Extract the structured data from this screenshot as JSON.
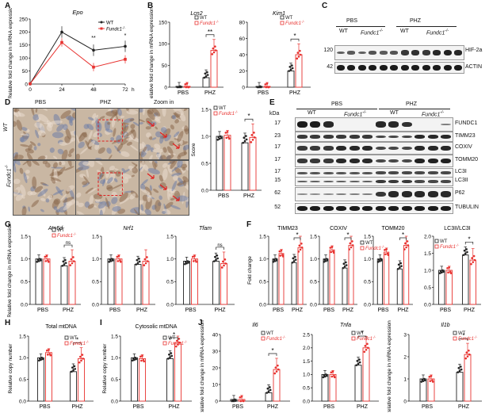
{
  "panels": {
    "A": {
      "label": "A"
    },
    "B": {
      "label": "B"
    },
    "C": {
      "label": "C"
    },
    "D": {
      "label": "D"
    },
    "E": {
      "label": "E"
    },
    "F": {
      "label": "F"
    },
    "G": {
      "label": "G"
    },
    "H": {
      "label": "H"
    },
    "I": {
      "label": "I"
    },
    "J": {
      "label": "J"
    }
  },
  "legend": {
    "wt": "WT",
    "ko": "Fundc1",
    "ko_sup": "-/-"
  },
  "colors": {
    "wt": "#222222",
    "ko": "#e8322f"
  },
  "common": {
    "pbs": "PBS",
    "phz": "PHZ",
    "ylab_mrna": "Relative fold change in mRNA expression",
    "ns": "ns",
    "sig1": "*",
    "sig2": "**"
  },
  "panelA": {
    "title": "Epo",
    "xunit": "h",
    "ylabel": "Relative fold change in mRNA expression"
  },
  "panelC": {
    "groups": [
      "PBS",
      "PHZ"
    ],
    "sub": [
      "WT",
      "Fundc1",
      "WT",
      "Fundc1"
    ],
    "sup": "-/-",
    "blots": [
      "HIF-2a",
      "ACTIN"
    ],
    "kda": [
      "120",
      "42"
    ]
  },
  "panelD": {
    "cols": [
      "PBS",
      "PHZ",
      "Zoom in"
    ],
    "rows": [
      "WT",
      "Fundc1"
    ],
    "row_sup": "-/-",
    "ylabel": "Score"
  },
  "panelE": {
    "kda_title": "kDa",
    "groups": [
      "PBS",
      "PHZ"
    ],
    "sub": [
      "WT",
      "Fundc1",
      "WT",
      "Fundc1"
    ],
    "sup": "-/-",
    "blots": [
      "FUNDC1",
      "TIMM23",
      "COXIV",
      "TOMM20",
      "LC3I",
      "LC3II",
      "P62",
      "TUBULIN"
    ],
    "kda": [
      "17",
      "23",
      "17",
      "17",
      "17",
      "15",
      "62",
      "52"
    ]
  },
  "panelF": {
    "ylabel": "Fold change"
  },
  "panelG": {
    "ylabel": "Relative fold change in mRNA expression"
  },
  "panelH": {
    "title": "Total mtDNA",
    "ylabel": "Relative copy number"
  },
  "panelI": {
    "title": "Cytosolic mtDNA",
    "ylabel": "Relative copy number"
  },
  "panelJ": {
    "ylabel": "Relative fold change in mRNA expression"
  },
  "chart_data": [
    {
      "id": "A",
      "type": "line",
      "title": "Epo",
      "x": [
        0,
        24,
        48,
        72
      ],
      "xlabel": "h",
      "ylabel": "Relative fold change in mRNA expression",
      "ylim": [
        0,
        250
      ],
      "yticks": [
        0,
        50,
        100,
        150,
        200,
        250
      ],
      "series": [
        {
          "name": "WT",
          "values": [
            1,
            200,
            130,
            145
          ]
        },
        {
          "name": "Fundc1-/-",
          "values": [
            1,
            160,
            65,
            95
          ]
        }
      ],
      "annotations": [
        "**",
        "*"
      ]
    },
    {
      "id": "B1",
      "type": "bar",
      "title": "Lcn2",
      "categories": [
        "PBS",
        "PHZ"
      ],
      "ylim": [
        0,
        150
      ],
      "yticks": [
        0,
        50,
        100,
        150
      ],
      "ylabel": "Relative fold change in mRNA expression",
      "series": [
        {
          "name": "WT",
          "values": [
            2,
            22
          ]
        },
        {
          "name": "Fundc1-/-",
          "values": [
            2,
            85
          ]
        }
      ],
      "annotations": [
        "**"
      ]
    },
    {
      "id": "B2",
      "type": "bar",
      "title": "Kim1",
      "categories": [
        "PBS",
        "PHZ"
      ],
      "ylim": [
        0,
        80
      ],
      "yticks": [
        0,
        20,
        40,
        60,
        80
      ],
      "series": [
        {
          "name": "WT",
          "values": [
            1,
            20
          ]
        },
        {
          "name": "Fundc1-/-",
          "values": [
            1,
            40
          ]
        }
      ],
      "annotations": [
        "*"
      ]
    },
    {
      "id": "D",
      "type": "bar",
      "categories": [
        "PBS",
        "PHZ"
      ],
      "ylabel": "Score",
      "ylim": [
        0,
        1.5
      ],
      "yticks": [
        0.0,
        0.5,
        1.0,
        1.5
      ],
      "series": [
        {
          "name": "WT",
          "values": [
            1.0,
            0.88
          ]
        },
        {
          "name": "Fundc1-/-",
          "values": [
            1.02,
            0.98
          ]
        }
      ],
      "annotations": [
        "*"
      ]
    },
    {
      "id": "F1",
      "type": "bar",
      "title": "TIMM23",
      "categories": [
        "PBS",
        "PHZ"
      ],
      "ylabel": "Fold change",
      "ylim": [
        0,
        1.5
      ],
      "yticks": [
        0.0,
        0.5,
        1.0,
        1.5
      ],
      "series": [
        {
          "name": "WT",
          "values": [
            1.0,
            0.92
          ]
        },
        {
          "name": "Fundc1-/-",
          "values": [
            1.12,
            1.25
          ]
        }
      ],
      "annotations": [
        "*"
      ]
    },
    {
      "id": "F2",
      "type": "bar",
      "title": "COXIV",
      "categories": [
        "PBS",
        "PHZ"
      ],
      "ylim": [
        0,
        1.5
      ],
      "yticks": [
        0.0,
        0.5,
        1.0,
        1.5
      ],
      "series": [
        {
          "name": "WT",
          "values": [
            1.0,
            0.8
          ]
        },
        {
          "name": "Fundc1-/-",
          "values": [
            1.2,
            1.3
          ]
        }
      ],
      "annotations": [
        "*"
      ]
    },
    {
      "id": "F3",
      "type": "bar",
      "title": "TOMM20",
      "categories": [
        "PBS",
        "PHZ"
      ],
      "ylim": [
        0,
        1.5
      ],
      "yticks": [
        0.0,
        0.5,
        1.0,
        1.5
      ],
      "series": [
        {
          "name": "WT",
          "values": [
            1.0,
            0.78
          ]
        },
        {
          "name": "Fundc1-/-",
          "values": [
            1.15,
            1.3
          ]
        }
      ],
      "annotations": [
        "*"
      ]
    },
    {
      "id": "F4",
      "type": "bar",
      "title": "LC3II/LC3I",
      "categories": [
        "PBS",
        "PHZ"
      ],
      "ylim": [
        0,
        2.0
      ],
      "yticks": [
        0.0,
        0.5,
        1.0,
        1.5,
        2.0
      ],
      "series": [
        {
          "name": "WT",
          "values": [
            1.0,
            1.45
          ]
        },
        {
          "name": "Fundc1-/-",
          "values": [
            1.0,
            1.3
          ]
        }
      ],
      "annotations": [
        "*"
      ]
    },
    {
      "id": "G1",
      "type": "bar",
      "title": "Atp5d",
      "categories": [
        "PBS",
        "PHZ"
      ],
      "ylim": [
        0,
        1.5
      ],
      "yticks": [
        0.0,
        0.5,
        1.0,
        1.5
      ],
      "ylabel": "Relative fold change in mRNA expression",
      "series": [
        {
          "name": "WT",
          "values": [
            1.0,
            0.85
          ]
        },
        {
          "name": "Fundc1-/-",
          "values": [
            1.0,
            0.95
          ]
        }
      ],
      "annotations": [
        "ns"
      ]
    },
    {
      "id": "G2",
      "type": "bar",
      "title": "Nrf1",
      "categories": [
        "PBS",
        "PHZ"
      ],
      "ylim": [
        0,
        1.5
      ],
      "yticks": [
        0.0,
        0.5,
        1.0,
        1.5
      ],
      "series": [
        {
          "name": "WT",
          "values": [
            1.0,
            0.88
          ]
        },
        {
          "name": "Fundc1-/-",
          "values": [
            1.0,
            0.95
          ]
        }
      ]
    },
    {
      "id": "G3",
      "type": "bar",
      "title": "Tfam",
      "categories": [
        "PBS",
        "PHZ"
      ],
      "ylim": [
        0,
        1.5
      ],
      "yticks": [
        0.0,
        0.5,
        1.0,
        1.5
      ],
      "series": [
        {
          "name": "WT",
          "values": [
            0.95,
            0.95
          ]
        },
        {
          "name": "Fundc1-/-",
          "values": [
            1.0,
            0.9
          ]
        }
      ],
      "annotations": [
        "ns"
      ]
    },
    {
      "id": "H",
      "type": "bar",
      "title": "Total mtDNA",
      "categories": [
        "PBS",
        "PHZ"
      ],
      "ylabel": "Relative copy number",
      "ylim": [
        0,
        1.5
      ],
      "yticks": [
        0.0,
        0.5,
        1.0,
        1.5
      ],
      "series": [
        {
          "name": "WT",
          "values": [
            1.0,
            0.68
          ]
        },
        {
          "name": "Fundc1-/-",
          "values": [
            1.12,
            0.98
          ]
        }
      ],
      "annotations": [
        "*"
      ]
    },
    {
      "id": "I",
      "type": "bar",
      "title": "Cytosolic mtDNA",
      "categories": [
        "PBS",
        "PHZ"
      ],
      "ylabel": "Relative copy number",
      "ylim": [
        0,
        1.5
      ],
      "yticks": [
        0.0,
        0.5,
        1.0,
        1.5
      ],
      "series": [
        {
          "name": "WT",
          "values": [
            1.0,
            0.98
          ]
        },
        {
          "name": "Fundc1-/-",
          "values": [
            0.98,
            1.35
          ]
        }
      ],
      "annotations": [
        "*"
      ]
    },
    {
      "id": "J1",
      "type": "bar",
      "title": "Il6",
      "categories": [
        "PBS",
        "PHZ"
      ],
      "ylabel": "Relative fold change in mRNA expression",
      "ylim": [
        0,
        40
      ],
      "yticks": [
        0,
        10,
        20,
        30,
        40
      ],
      "series": [
        {
          "name": "WT",
          "values": [
            1,
            5
          ]
        },
        {
          "name": "Fundc1-/-",
          "values": [
            1,
            19
          ]
        }
      ],
      "annotations": [
        "*"
      ]
    },
    {
      "id": "J2",
      "type": "bar",
      "title": "Tnfa",
      "categories": [
        "PBS",
        "PHZ"
      ],
      "ylim": [
        0,
        2.5
      ],
      "yticks": [
        0.0,
        0.5,
        1.0,
        1.5,
        2.0,
        2.5
      ],
      "series": [
        {
          "name": "WT",
          "values": [
            1.0,
            1.35
          ]
        },
        {
          "name": "Fundc1-/-",
          "values": [
            1.0,
            2.0
          ]
        }
      ],
      "annotations": [
        "*"
      ]
    },
    {
      "id": "J3",
      "type": "bar",
      "title": "Il1b",
      "categories": [
        "PBS",
        "PHZ"
      ],
      "ylabel": "Relative fold change in mRNA expression",
      "ylim": [
        0,
        3
      ],
      "yticks": [
        0,
        1,
        2,
        3
      ],
      "series": [
        {
          "name": "WT",
          "values": [
            1.0,
            1.3
          ]
        },
        {
          "name": "Fundc1-/-",
          "values": [
            1.0,
            2.1
          ]
        }
      ],
      "annotations": [
        "*"
      ]
    }
  ]
}
